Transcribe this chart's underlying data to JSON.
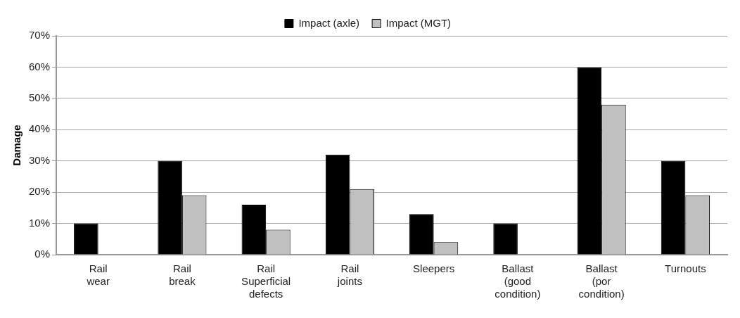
{
  "chart_data": {
    "type": "bar",
    "ylabel": "Damage",
    "categories": [
      "Rail\nwear",
      "Rail\nbreak",
      "Rail\nSuperficial\ndefects",
      "Rail\njoints",
      "Sleepers",
      "Ballast\n(good\ncondition)",
      "Ballast\n(por\ncondition)",
      "Turnouts"
    ],
    "series": [
      {
        "name": "Impact (axle)",
        "color": "#000000",
        "values": [
          10,
          30,
          16,
          32,
          13,
          10,
          60,
          30
        ]
      },
      {
        "name": "Impact (MGT)",
        "color": "#c0c0c0",
        "values": [
          null,
          19,
          8,
          21,
          4,
          null,
          48,
          19
        ]
      }
    ],
    "ylim": [
      0,
      70
    ],
    "yticks": [
      {
        "value": 0,
        "label": "0%"
      },
      {
        "value": 10,
        "label": "10%"
      },
      {
        "value": 20,
        "label": "20%"
      },
      {
        "value": 30,
        "label": "30%"
      },
      {
        "value": 40,
        "label": "40%"
      },
      {
        "value": 50,
        "label": "50%"
      },
      {
        "value": 60,
        "label": "60%"
      },
      {
        "value": 70,
        "label": "70%"
      }
    ],
    "grid": "y",
    "legend": "top"
  }
}
